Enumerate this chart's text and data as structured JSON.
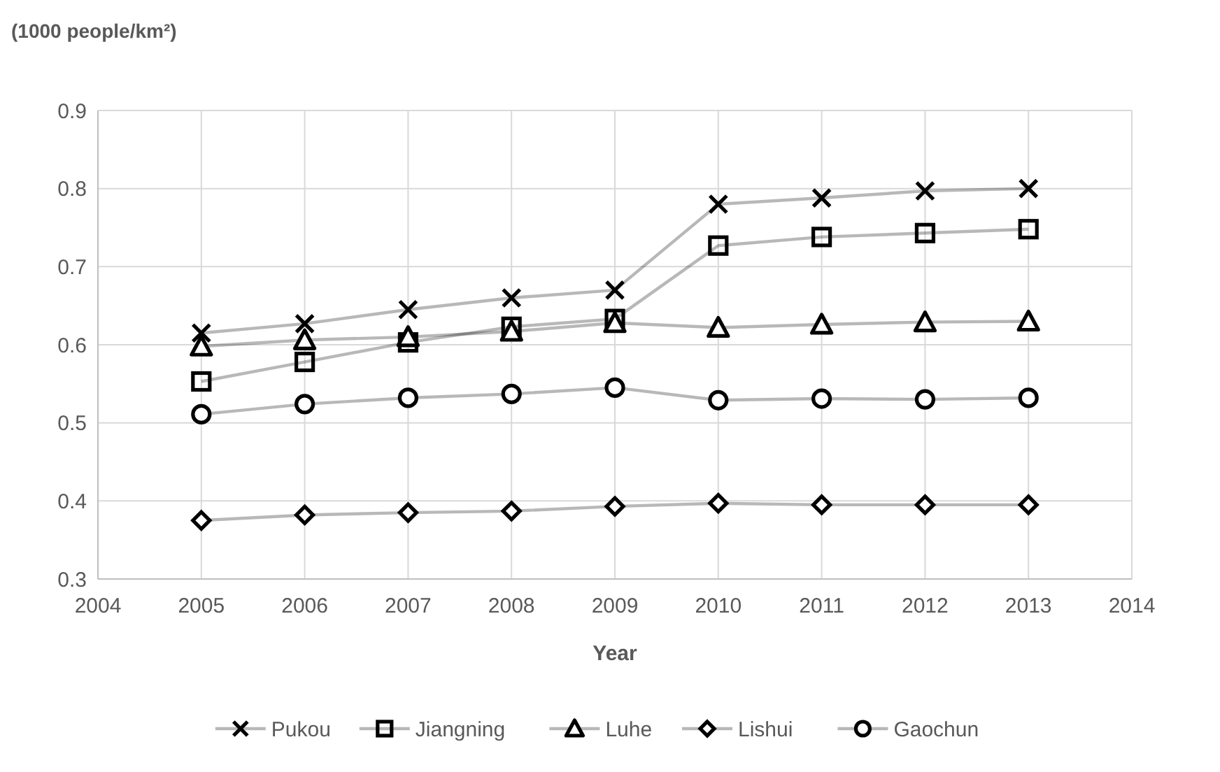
{
  "chart_data": {
    "type": "line",
    "ylabel": "(1000 people/km²)",
    "xlabel": "Year",
    "x": [
      2005,
      2006,
      2007,
      2008,
      2009,
      2010,
      2011,
      2012,
      2013
    ],
    "xlim": [
      2004,
      2014
    ],
    "xticks": [
      2004,
      2005,
      2006,
      2007,
      2008,
      2009,
      2010,
      2011,
      2012,
      2013,
      2014
    ],
    "ylim": [
      0.3,
      0.9
    ],
    "yticks": [
      0.3,
      0.4,
      0.5,
      0.6,
      0.7,
      0.8,
      0.9
    ],
    "grid": true,
    "legend": "bottom",
    "series": [
      {
        "name": "Pukou",
        "color": "#000000",
        "marker": "cross",
        "values": [
          0.615,
          0.627,
          0.645,
          0.66,
          0.67,
          0.78,
          0.788,
          0.797,
          0.8
        ]
      },
      {
        "name": "Jiangning",
        "color": "#000000",
        "marker": "square",
        "values": [
          0.553,
          0.578,
          0.603,
          0.623,
          0.633,
          0.727,
          0.738,
          0.743,
          0.748
        ]
      },
      {
        "name": "Luhe",
        "color": "#000000",
        "marker": "triangle",
        "values": [
          0.598,
          0.606,
          0.61,
          0.617,
          0.628,
          0.622,
          0.626,
          0.629,
          0.63
        ]
      },
      {
        "name": "Lishui",
        "color": "#000000",
        "marker": "diamond",
        "values": [
          0.375,
          0.382,
          0.385,
          0.387,
          0.393,
          0.397,
          0.395,
          0.395,
          0.395
        ]
      },
      {
        "name": "Gaochun",
        "color": "#000000",
        "marker": "circle",
        "values": [
          0.511,
          0.524,
          0.532,
          0.537,
          0.545,
          0.529,
          0.531,
          0.53,
          0.532
        ]
      }
    ]
  }
}
